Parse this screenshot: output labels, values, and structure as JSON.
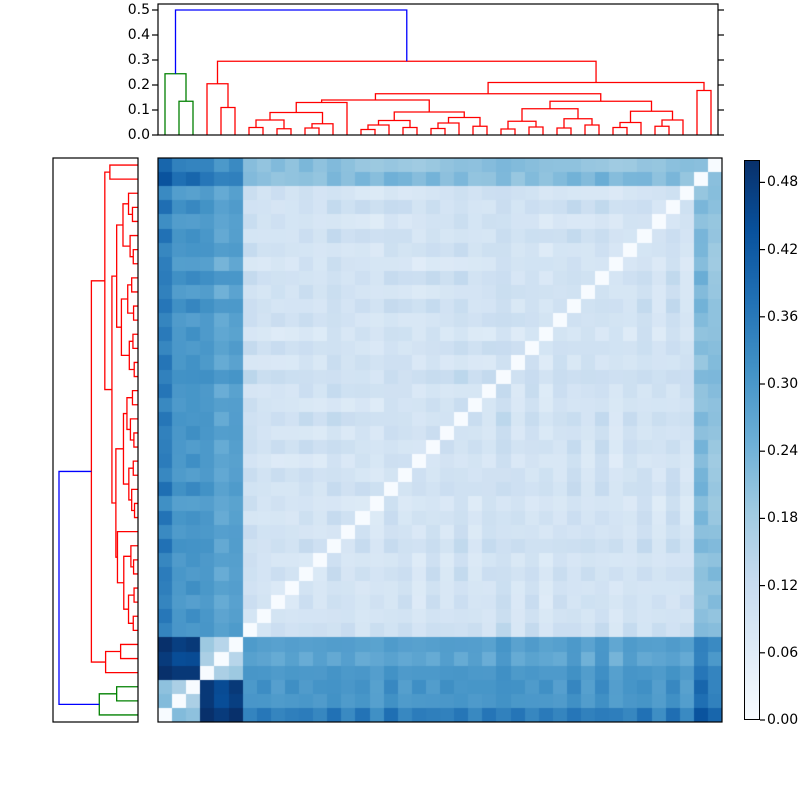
{
  "chart_data": {
    "type": "heatmap",
    "subtype": "clustered-distance-matrix-with-dendrograms",
    "title": "",
    "description": "Hierarchically clustered symmetric distance matrix (Blues colormap). Columns left-to-right are dendrogram leaves 0-39; rows top-to-bottom are leaves 39-0 (reversed), giving a white zero-distance anti-diagonal. Top and left dendrograms show the same linkage; links below the color threshold are red (main cluster) or green (3-leaf outlier cluster), the root join at 0.5 is blue.",
    "n_leaves": 40,
    "values_range": [
      0.0,
      0.5
    ],
    "grid": false,
    "colormap": {
      "name": "Blues",
      "stops": [
        [
          0.0,
          "#f7fbff"
        ],
        [
          0.125,
          "#deebf7"
        ],
        [
          0.25,
          "#c6dbef"
        ],
        [
          0.375,
          "#9ecae1"
        ],
        [
          0.5,
          "#6baed6"
        ],
        [
          0.625,
          "#4292c6"
        ],
        [
          0.75,
          "#2171b5"
        ],
        [
          0.875,
          "#08519c"
        ],
        [
          1.0,
          "#08306b"
        ]
      ]
    },
    "colorbar": {
      "position": "right",
      "tick_values": [
        0.48,
        0.42,
        0.36,
        0.3,
        0.24,
        0.18,
        0.12,
        0.06,
        0.0
      ],
      "tick_labels": [
        "0.48",
        "0.42",
        "0.36",
        "0.30",
        "0.24",
        "0.18",
        "0.12",
        "0.06",
        "0.00"
      ],
      "vmin": 0.0,
      "vmax": 0.5
    },
    "top_dendrogram_axis": {
      "tick_values": [
        0.0,
        0.1,
        0.2,
        0.3,
        0.4,
        0.5
      ],
      "tick_labels": [
        "0.0",
        "0.1",
        "0.2",
        "0.3",
        "0.4",
        "0.5"
      ],
      "ymax": 0.5
    },
    "link_colors": {
      "red": "#ff0000",
      "green": "#008000",
      "blue": "#0000ff"
    },
    "dendrogram": {
      "note": "scipy-style linkage: entries [childA, childB, height, color]; ids < 40 are leaves, id 40+k is merge k. Same tree is drawn on top (leaves left-to-right 0-39) and left (leaves bottom-to-top 0-39).",
      "merges": [
        [
          4,
          5,
          0.11,
          "red"
        ],
        [
          3,
          40,
          0.205,
          "red"
        ],
        [
          6,
          7,
          0.03,
          "red"
        ],
        [
          8,
          9,
          0.025,
          "red"
        ],
        [
          42,
          43,
          0.06,
          "red"
        ],
        [
          10,
          11,
          0.028,
          "red"
        ],
        [
          12,
          45,
          0.045,
          "red"
        ],
        [
          44,
          46,
          0.09,
          "red"
        ],
        [
          13,
          47,
          0.13,
          "red"
        ],
        [
          14,
          15,
          0.022,
          "red"
        ],
        [
          16,
          49,
          0.04,
          "red"
        ],
        [
          17,
          18,
          0.03,
          "red"
        ],
        [
          50,
          51,
          0.058,
          "red"
        ],
        [
          19,
          20,
          0.026,
          "red"
        ],
        [
          21,
          53,
          0.048,
          "red"
        ],
        [
          22,
          23,
          0.035,
          "red"
        ],
        [
          54,
          55,
          0.07,
          "red"
        ],
        [
          52,
          56,
          0.092,
          "red"
        ],
        [
          48,
          57,
          0.14,
          "red"
        ],
        [
          24,
          25,
          0.024,
          "red"
        ],
        [
          26,
          27,
          0.032,
          "red"
        ],
        [
          59,
          60,
          0.055,
          "red"
        ],
        [
          28,
          29,
          0.028,
          "red"
        ],
        [
          30,
          31,
          0.04,
          "red"
        ],
        [
          62,
          63,
          0.065,
          "red"
        ],
        [
          61,
          64,
          0.105,
          "red"
        ],
        [
          32,
          33,
          0.03,
          "red"
        ],
        [
          34,
          66,
          0.05,
          "red"
        ],
        [
          35,
          36,
          0.035,
          "red"
        ],
        [
          37,
          68,
          0.06,
          "red"
        ],
        [
          67,
          69,
          0.095,
          "red"
        ],
        [
          65,
          70,
          0.135,
          "red"
        ],
        [
          58,
          71,
          0.165,
          "red"
        ],
        [
          38,
          39,
          0.178,
          "red"
        ],
        [
          72,
          73,
          0.21,
          "red"
        ],
        [
          41,
          74,
          0.295,
          "red"
        ],
        [
          1,
          2,
          0.135,
          "green"
        ],
        [
          0,
          76,
          0.245,
          "green"
        ],
        [
          77,
          75,
          0.5,
          "blue"
        ]
      ]
    },
    "matrix_model": {
      "note": "Estimated reconstruction of the depicted 40x40 symmetric distance matrix: D[i][j] = block_distances[group[i]][group[j]] + leaf_offsets[i] + leaf_offsets[j] + jitter(i,j), clamped to [0.02, 0.5]; D[i][i] = 0 (white diagonal). Group 0 = green outlier cluster (dark rows at bottom / columns at left vs others, near-black vs group 1), group 1 = distinctive red clade (dark band columns 3-5), group 2 = large light main block, group 3 = far-right pair (medium bands at top rows / right columns).",
      "groups": [
        0,
        0,
        0,
        1,
        1,
        1,
        2,
        2,
        2,
        2,
        2,
        2,
        2,
        2,
        2,
        2,
        2,
        2,
        2,
        2,
        2,
        2,
        2,
        2,
        2,
        2,
        2,
        2,
        2,
        2,
        2,
        2,
        2,
        2,
        2,
        2,
        2,
        2,
        3,
        3
      ],
      "block_distances": [
        [
          0.185,
          0.46,
          0.31,
          0.36
        ],
        [
          0.46,
          0.14,
          0.27,
          0.31
        ],
        [
          0.31,
          0.27,
          0.095,
          0.2
        ],
        [
          0.36,
          0.31,
          0.2,
          0.18
        ]
      ],
      "leaf_offsets": [
        0.04,
        -0.01,
        -0.005,
        0.03,
        0.0,
        0.015,
        0.01,
        -0.005,
        0.0,
        -0.008,
        0.005,
        -0.01,
        0.012,
        -0.005,
        0.0,
        -0.012,
        0.008,
        0.0,
        -0.01,
        0.005,
        -0.005,
        0.01,
        -0.008,
        0.0,
        0.015,
        -0.005,
        0.005,
        -0.01,
        0.0,
        0.008,
        -0.005,
        0.01,
        -0.012,
        0.0,
        0.005,
        -0.008,
        0.01,
        -0.005,
        0.02,
        0.005
      ],
      "jitter_amplitude": 0.015,
      "diagonal_value": 0.0,
      "row_order": "reversed"
    },
    "background_color": "#ffffff",
    "frame_color": "#000000"
  }
}
